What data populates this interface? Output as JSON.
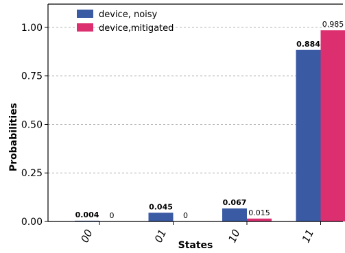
{
  "chart_data": {
    "type": "bar",
    "categories": [
      "00",
      "01",
      "10",
      "11"
    ],
    "series": [
      {
        "name": "device, noisy",
        "values": [
          0.004,
          0.045,
          0.067,
          0.884
        ],
        "labels": [
          "0.004",
          "0.045",
          "0.067",
          "0.884"
        ],
        "color": "#3a5aa3"
      },
      {
        "name": "device,mitigated",
        "values": [
          0,
          0,
          0.015,
          0.985
        ],
        "labels": [
          "0",
          "0",
          "0.015",
          "0.985"
        ],
        "color": "#dc2f6f"
      }
    ],
    "title": "",
    "xlabel": "States",
    "ylabel": "Probabilities",
    "ylim": [
      0,
      1.12
    ],
    "yticks": [
      0,
      0.25,
      0.5,
      0.75,
      1.0
    ],
    "ytick_labels": [
      "0.00",
      "0.25",
      "0.50",
      "0.75",
      "1.00"
    ],
    "grid": true,
    "legend_position": "top-left"
  }
}
